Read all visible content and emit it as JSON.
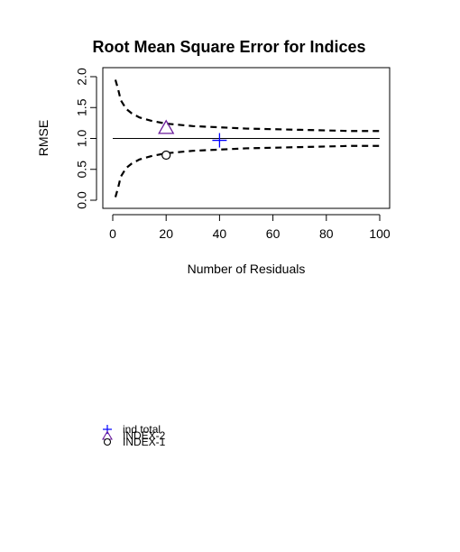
{
  "chart_data": {
    "type": "line",
    "title": "Root Mean Square Error for Indices",
    "xlabel": "Number of Residuals",
    "ylabel": "RMSE",
    "xlim": [
      0,
      100
    ],
    "ylim": [
      0,
      2
    ],
    "x_ticks": [
      "0",
      "20",
      "40",
      "60",
      "80",
      "100"
    ],
    "y_ticks": [
      "0.0",
      "0.5",
      "1.0",
      "1.5",
      "2.0"
    ],
    "grid": false,
    "reference_line": {
      "y": 1.0
    },
    "bounds": {
      "style": "dashed",
      "x": [
        1,
        2,
        3,
        5,
        7,
        10,
        15,
        20,
        25,
        30,
        40,
        50,
        60,
        70,
        80,
        90,
        100
      ],
      "upper": [
        1.95,
        1.8,
        1.62,
        1.48,
        1.41,
        1.34,
        1.28,
        1.24,
        1.22,
        1.2,
        1.18,
        1.16,
        1.15,
        1.14,
        1.13,
        1.12,
        1.12
      ],
      "lower": [
        0.05,
        0.2,
        0.38,
        0.52,
        0.59,
        0.66,
        0.72,
        0.76,
        0.78,
        0.8,
        0.82,
        0.84,
        0.85,
        0.86,
        0.87,
        0.88,
        0.88
      ]
    },
    "points": [
      {
        "name": "ind total",
        "marker": "plus",
        "color": "#0000ff",
        "x": 40,
        "y": 0.97
      },
      {
        "name": "INDEX-2",
        "marker": "triangle",
        "color": "#6a1b9a",
        "x": 20,
        "y": 1.17
      },
      {
        "name": "INDEX-1",
        "marker": "circle",
        "color": "#000000",
        "x": 20,
        "y": 0.73
      }
    ],
    "legend_placement": "bottom-left"
  },
  "legend": {
    "items": [
      {
        "label": "ind total",
        "marker": "plus-icon"
      },
      {
        "label": "INDEX-2",
        "marker": "triangle-icon"
      },
      {
        "label": "INDEX-1",
        "marker": "circle-icon"
      }
    ]
  }
}
